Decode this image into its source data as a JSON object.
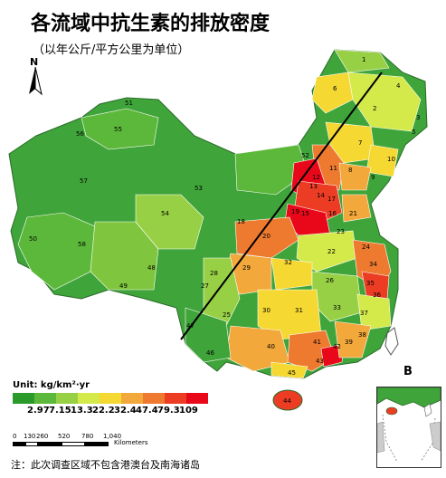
{
  "title": "各流域中抗生素的排放密度",
  "subtitle": "（以年公斤/平方公里为单位）",
  "north_label": "N",
  "panel_label": "B",
  "legend": {
    "unit": "Unit: kg/km²·yr",
    "breaks": [
      "2.97",
      "7.15",
      "13.3",
      "22.2",
      "32.4",
      "47.4",
      "79.3",
      "109"
    ],
    "colors": [
      "#2a9a2a",
      "#5cb83a",
      "#98d045",
      "#d4e94a",
      "#f5d832",
      "#f2a83a",
      "#ee7a30",
      "#ec3c24",
      "#e8081a"
    ]
  },
  "scale_bar": {
    "labels": [
      "0",
      "130",
      "260",
      "520",
      "780",
      "1,040"
    ],
    "unit": "Kilometers"
  },
  "note": "注：此次调查区域不包含港澳台及南海诸岛",
  "basin_ids": [
    "1",
    "2",
    "3",
    "4",
    "5",
    "6",
    "7",
    "8",
    "9",
    "10",
    "11",
    "12",
    "13",
    "14",
    "15",
    "16",
    "17",
    "18",
    "19",
    "20",
    "21",
    "22",
    "23",
    "24",
    "25",
    "26",
    "27",
    "28",
    "29",
    "30",
    "31",
    "32",
    "33",
    "34",
    "35",
    "36",
    "37",
    "38",
    "39",
    "40",
    "41",
    "42",
    "43",
    "44",
    "45",
    "46",
    "47",
    "48",
    "49",
    "50",
    "51",
    "52",
    "53",
    "54",
    "55",
    "56",
    "57",
    "58"
  ]
}
